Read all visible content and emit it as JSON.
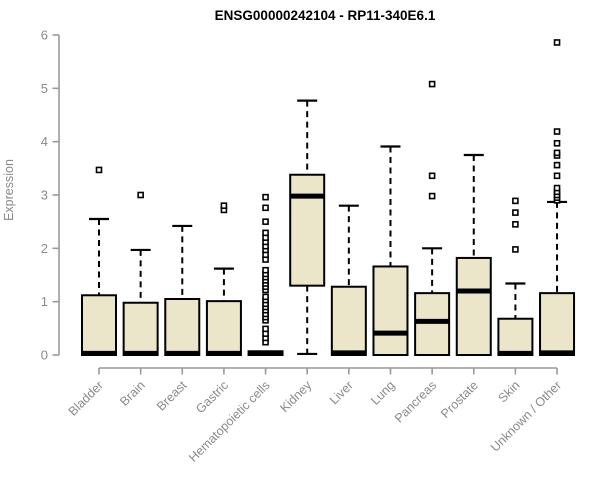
{
  "chart_data": {
    "type": "boxplot",
    "title": "ENSG00000242104 - RP11-340E6.1",
    "ylabel": "Expression",
    "xlabel": "",
    "ylim": [
      0,
      6
    ],
    "yticks": [
      0,
      1,
      2,
      3,
      4,
      5,
      6
    ],
    "grid": false,
    "legend": "none",
    "box_fill_color": "#EBE5C9",
    "box_stroke_color": "#000000",
    "axis_color": "#999999",
    "tick_label_color": "#8a8a8a",
    "title_color": "#000000",
    "categories": [
      "Bladder",
      "Brain",
      "Breast",
      "Gastric",
      "Hematopoietic cells",
      "Kidney",
      "Liver",
      "Lung",
      "Pancreas",
      "Prostate",
      "Skin",
      "Unknown / Other"
    ],
    "series": [
      {
        "category": "Bladder",
        "q1": 0,
        "median": 0.03,
        "q3": 1.12,
        "whisker_low": null,
        "whisker_high": 2.55,
        "outliers": [
          3.47
        ]
      },
      {
        "category": "Brain",
        "q1": 0,
        "median": 0.03,
        "q3": 0.98,
        "whisker_low": null,
        "whisker_high": 1.97,
        "outliers": [
          3.0
        ]
      },
      {
        "category": "Breast",
        "q1": 0,
        "median": 0.03,
        "q3": 1.05,
        "whisker_low": null,
        "whisker_high": 2.42,
        "outliers": []
      },
      {
        "category": "Gastric",
        "q1": 0,
        "median": 0.03,
        "q3": 1.01,
        "whisker_low": null,
        "whisker_high": 1.62,
        "outliers": [
          2.72,
          2.8
        ]
      },
      {
        "category": "Hematopoietic cells",
        "q1": 0,
        "median": 0.03,
        "q3": 0.07,
        "whisker_low": null,
        "whisker_high": null,
        "outliers": [
          0.24,
          0.32,
          0.4,
          0.49,
          0.65,
          0.71,
          0.77,
          0.84,
          0.9,
          0.96,
          1.03,
          1.09,
          1.22,
          1.28,
          1.34,
          1.4,
          1.46,
          1.52,
          1.59,
          1.79,
          1.88,
          1.97,
          2.04,
          2.12,
          2.2,
          2.29,
          2.5,
          2.76,
          2.96
        ]
      },
      {
        "category": "Kidney",
        "q1": 1.3,
        "median": 2.98,
        "q3": 3.38,
        "whisker_low": 0.02,
        "whisker_high": 4.77,
        "outliers": []
      },
      {
        "category": "Liver",
        "q1": 0,
        "median": 0.04,
        "q3": 1.28,
        "whisker_low": null,
        "whisker_high": 2.8,
        "outliers": []
      },
      {
        "category": "Lung",
        "q1": 0,
        "median": 0.41,
        "q3": 1.66,
        "whisker_low": null,
        "whisker_high": 3.91,
        "outliers": []
      },
      {
        "category": "Pancreas",
        "q1": 0,
        "median": 0.63,
        "q3": 1.16,
        "whisker_low": null,
        "whisker_high": 2.0,
        "outliers": [
          2.98,
          3.36,
          5.08
        ]
      },
      {
        "category": "Prostate",
        "q1": 0,
        "median": 1.2,
        "q3": 1.82,
        "whisker_low": null,
        "whisker_high": 3.75,
        "outliers": []
      },
      {
        "category": "Skin",
        "q1": 0,
        "median": 0.03,
        "q3": 0.68,
        "whisker_low": null,
        "whisker_high": 1.34,
        "outliers": [
          1.98,
          2.45,
          2.67,
          2.89
        ]
      },
      {
        "category": "Unknown / Other",
        "q1": 0,
        "median": 0.04,
        "q3": 1.16,
        "whisker_low": null,
        "whisker_high": 2.87,
        "outliers": [
          2.9,
          2.95,
          3.0,
          3.06,
          3.13,
          3.36,
          3.56,
          3.74,
          3.79,
          3.97,
          4.19,
          5.86
        ]
      }
    ]
  }
}
